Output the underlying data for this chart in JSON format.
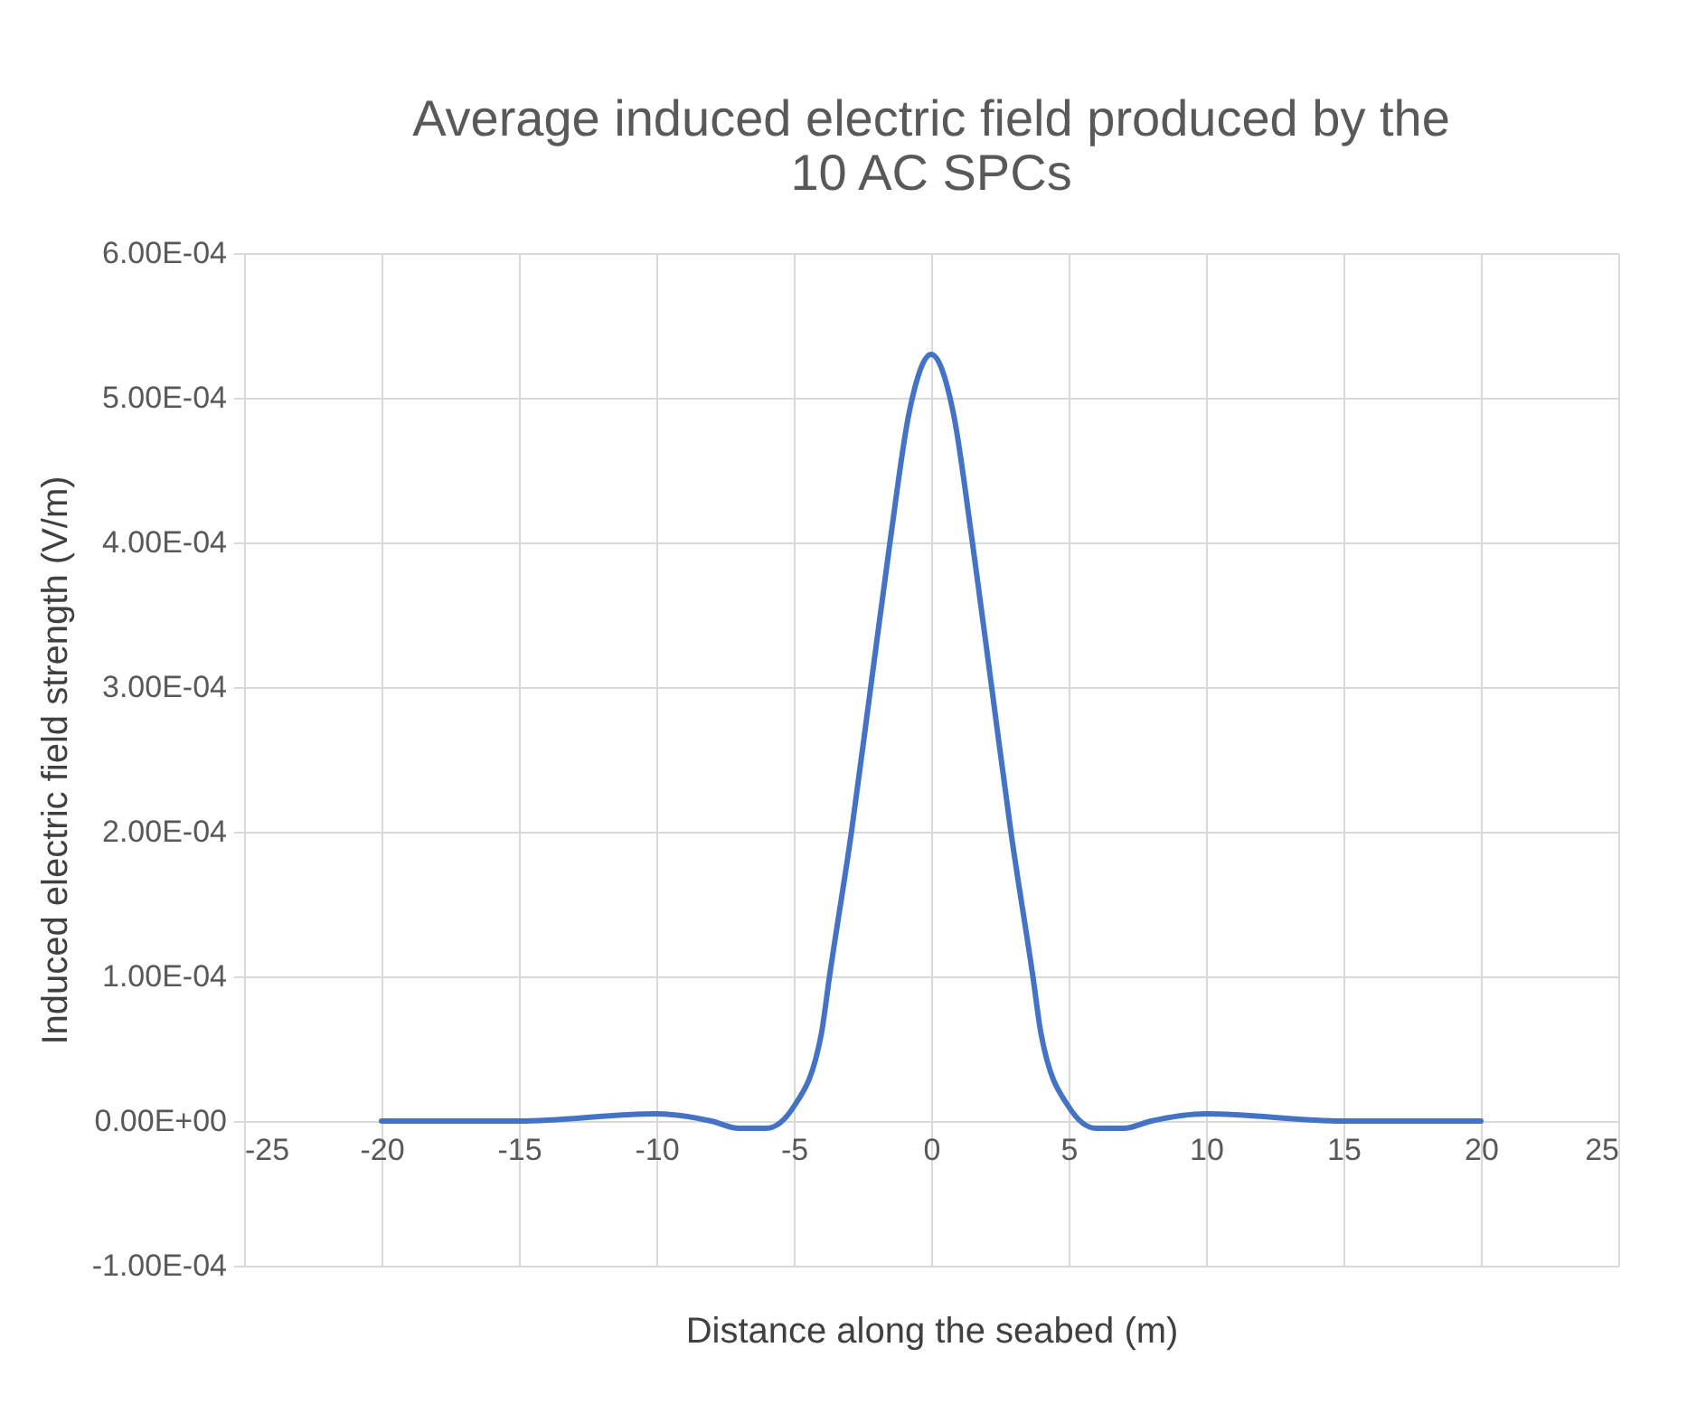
{
  "chart_data": {
    "type": "line",
    "title": "Average induced electric field produced by the 10 AC SPCs",
    "xlabel": "Distance along the seabed (m)",
    "ylabel": "Induced electric field strength (V/m)",
    "x": [
      -20,
      -15,
      -10,
      -8,
      -7,
      -6,
      -5,
      -4,
      -3.7,
      -2.9,
      -2.2,
      -1.5,
      -0.8,
      0,
      0.8,
      1.5,
      2.2,
      2.9,
      3.7,
      4,
      5,
      6,
      7,
      8,
      10,
      15,
      20
    ],
    "series": [
      {
        "color": "#4472c4",
        "values": [
          0,
          0,
          5e-06,
          0,
          -5e-06,
          -5e-06,
          1e-05,
          6e-05,
          0.0001,
          0.0002,
          0.0003,
          0.0004,
          0.00049,
          0.00053,
          0.00049,
          0.0004,
          0.0003,
          0.0002,
          0.0001,
          6e-05,
          1e-05,
          -5e-06,
          -5e-06,
          0,
          5e-06,
          0,
          0
        ]
      }
    ],
    "xlim": [
      -25,
      25
    ],
    "xticks": [
      -25,
      -20,
      -15,
      -10,
      -5,
      0,
      5,
      10,
      15,
      20,
      25
    ],
    "ylim": [
      -0.0001,
      0.0006
    ],
    "yticks": [
      {
        "value": -0.0001,
        "label": "-1.00E-04"
      },
      {
        "value": 0,
        "label": "0.00E+00"
      },
      {
        "value": 0.0001,
        "label": "1.00E-04"
      },
      {
        "value": 0.0002,
        "label": "2.00E-04"
      },
      {
        "value": 0.0003,
        "label": "3.00E-04"
      },
      {
        "value": 0.0004,
        "label": "4.00E-04"
      },
      {
        "value": 0.0005,
        "label": "5.00E-04"
      },
      {
        "value": 0.0006,
        "label": "6.00E-04"
      }
    ],
    "grid": true,
    "marker": "none",
    "line_style": "solid"
  }
}
